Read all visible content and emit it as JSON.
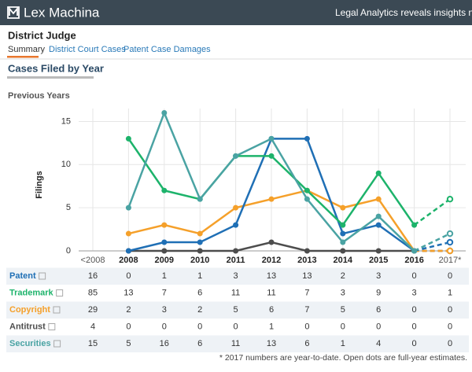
{
  "header": {
    "brand": "Lex Machina",
    "tagline": "Legal Analytics reveals insights never"
  },
  "page": {
    "title": "District Judge",
    "tabs": [
      "Summary",
      "District Court Cases",
      "Patent Case Damages"
    ],
    "section": "Cases Filed by Year",
    "subsection": "Previous Years",
    "footnote": "* 2017 numbers are year-to-date. Open dots are full-year estimates."
  },
  "chart_data": {
    "type": "line",
    "ylabel": "Filings",
    "categories": [
      "<2008",
      "2008",
      "2009",
      "2010",
      "2011",
      "2012",
      "2013",
      "2014",
      "2015",
      "2016",
      "2017*"
    ],
    "ylim": [
      0,
      16.5
    ],
    "yticks": [
      0,
      5,
      10,
      15
    ],
    "grid": true,
    "series": [
      {
        "name": "Patent",
        "color": "#1f6fb5",
        "values": [
          null,
          0,
          1,
          1,
          3,
          13,
          13,
          2,
          3,
          0,
          1
        ]
      },
      {
        "name": "Trademark",
        "color": "#1db36b",
        "values": [
          null,
          13,
          7,
          6,
          11,
          11,
          7,
          3,
          9,
          3,
          6
        ]
      },
      {
        "name": "Copyright",
        "color": "#f5a02a",
        "values": [
          null,
          2,
          3,
          2,
          5,
          6,
          7,
          5,
          6,
          0,
          0
        ]
      },
      {
        "name": "Antitrust",
        "color": "#4d4d4d",
        "values": [
          null,
          0,
          0,
          0,
          0,
          1,
          0,
          0,
          0,
          0,
          0
        ]
      },
      {
        "name": "Securities",
        "color": "#4aa3a3",
        "values": [
          null,
          5,
          16,
          6,
          11,
          13,
          6,
          1,
          4,
          0,
          2
        ]
      }
    ]
  },
  "table": {
    "rows": [
      [
        16,
        0,
        1,
        1,
        3,
        13,
        13,
        2,
        3,
        0,
        0
      ],
      [
        85,
        13,
        7,
        6,
        11,
        11,
        7,
        3,
        9,
        3,
        1
      ],
      [
        29,
        2,
        3,
        2,
        5,
        6,
        7,
        5,
        6,
        0,
        0
      ],
      [
        4,
        0,
        0,
        0,
        0,
        1,
        0,
        0,
        0,
        0,
        0
      ],
      [
        15,
        5,
        16,
        6,
        11,
        13,
        6,
        1,
        4,
        0,
        0
      ]
    ]
  }
}
